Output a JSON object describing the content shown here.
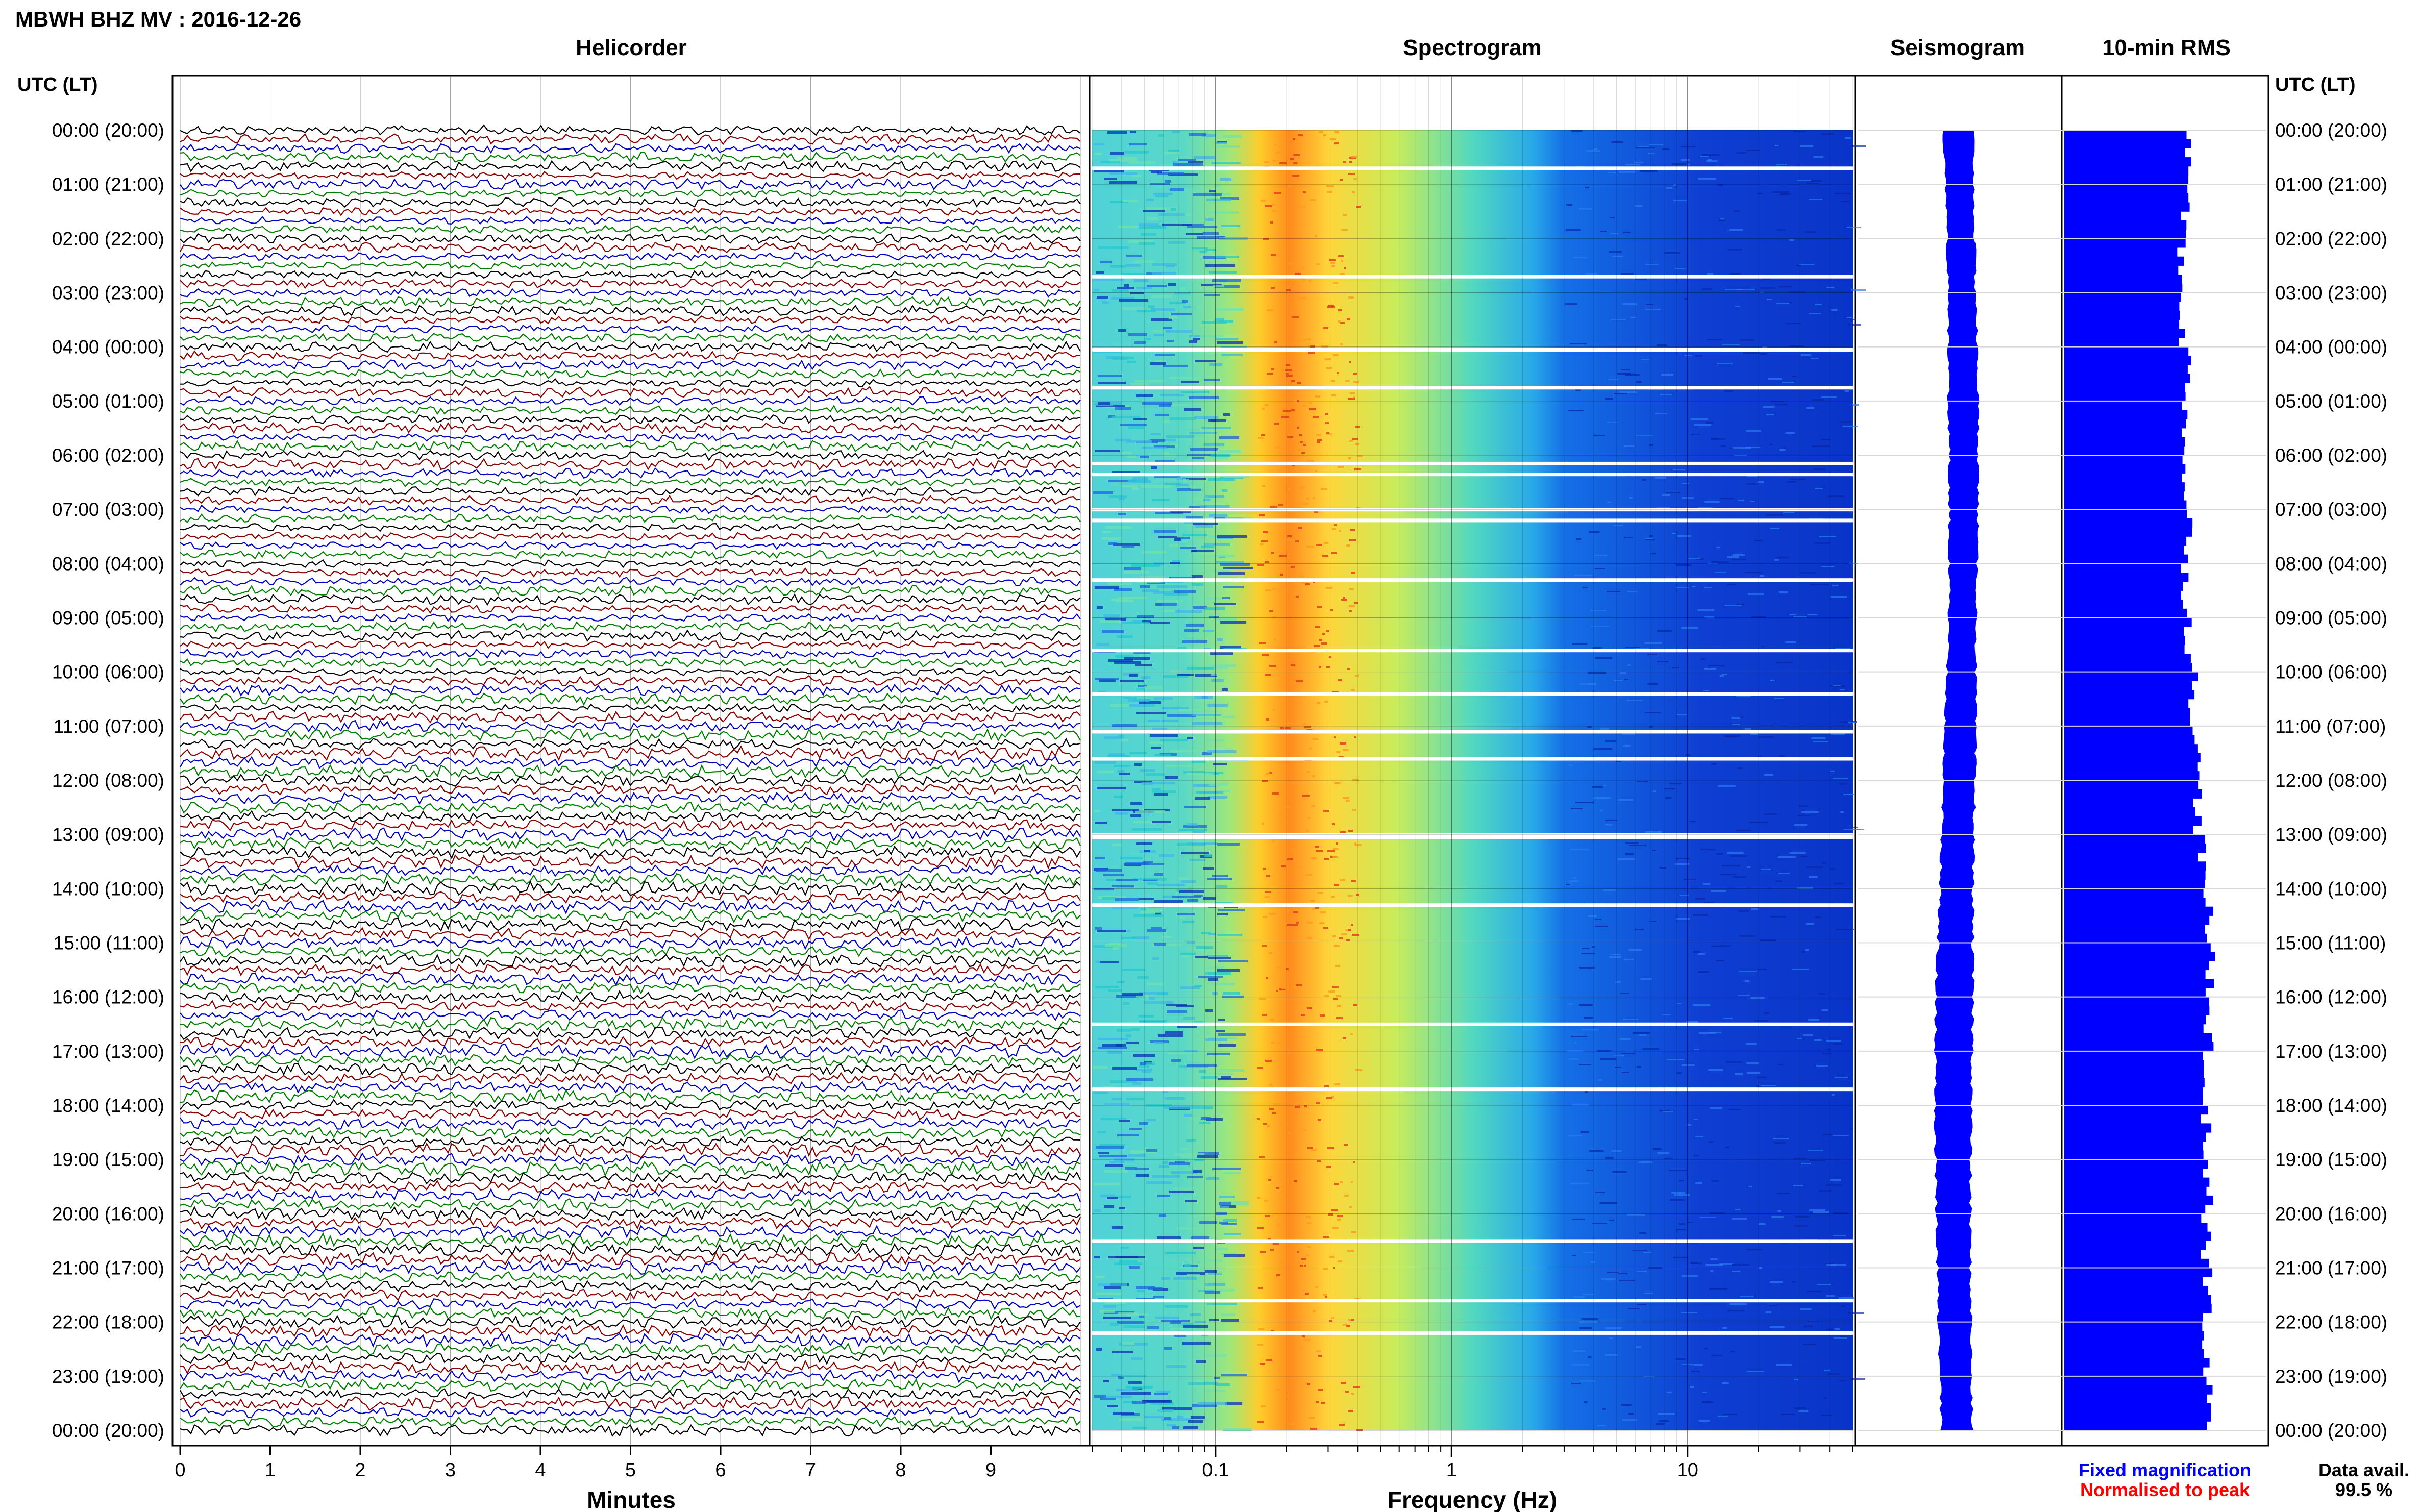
{
  "header": {
    "title": "MBWH BHZ MV : 2016-12-26",
    "time_axis_label_left": "UTC (LT)",
    "time_axis_label_right": "UTC (LT)"
  },
  "panels": {
    "helicorder_title": "Helicorder",
    "spectrogram_title": "Spectrogram",
    "seismogram_title": "Seismogram",
    "rms_title": "10-min RMS"
  },
  "footer": {
    "legend_fixed": "Fixed magnification",
    "legend_normalised": "Normalised to peak",
    "availability_label": "Data avail.",
    "availability_value": "99.5 %"
  },
  "colors": {
    "trace_cycle": [
      "#000000",
      "#8b0000",
      "#0000c8",
      "#008000"
    ],
    "fixed_magnification": "#0000ff",
    "normalised_to_peak": "#ff0000",
    "rms_bar": "#0000ff"
  },
  "chart_data": [
    {
      "type": "line",
      "title": "Helicorder",
      "xlabel": "Minutes",
      "x_ticks": [
        "0",
        "1",
        "2",
        "3",
        "4",
        "5",
        "6",
        "7",
        "8",
        "9"
      ],
      "xlim": [
        0,
        10
      ],
      "y_labels": [
        "00:00 (20:00)",
        "01:00 (21:00)",
        "02:00 (22:00)",
        "03:00 (23:00)",
        "04:00 (00:00)",
        "05:00 (01:00)",
        "06:00 (02:00)",
        "07:00 (03:00)",
        "08:00 (04:00)",
        "09:00 (05:00)",
        "10:00 (06:00)",
        "11:00 (07:00)",
        "12:00 (08:00)",
        "13:00 (09:00)",
        "14:00 (10:00)",
        "15:00 (11:00)",
        "16:00 (12:00)",
        "17:00 (13:00)",
        "18:00 (14:00)",
        "19:00 (15:00)",
        "20:00 (16:00)",
        "21:00 (17:00)",
        "22:00 (18:00)",
        "23:00 (19:00)",
        "00:00 (20:00)"
      ],
      "lines_per_hour": 6,
      "line_minutes": 10
    },
    {
      "type": "heatmap",
      "title": "Spectrogram",
      "xlabel": "Frequency (Hz)",
      "x_scale": "log",
      "xlim": [
        0.03,
        50
      ],
      "x_ticks": [
        "0.1",
        "1",
        "10"
      ],
      "x_tick_values": [
        0.1,
        1,
        10
      ],
      "peak_band_hz": [
        0.15,
        0.4
      ],
      "gap_rows_hours": [
        0.7,
        2.7,
        4.05,
        4.75,
        6.15,
        6.35,
        7.0,
        7.2,
        8.3,
        9.6,
        10.4,
        11.1,
        11.6,
        13.0,
        13.05,
        14.3,
        16.5,
        17.7,
        20.5,
        21.6,
        22.2
      ]
    },
    {
      "type": "line",
      "title": "Seismogram",
      "series": [
        {
          "name": "Fixed magnification",
          "values": [
            0.33,
            0.31,
            0.3,
            0.3,
            0.31,
            0.32,
            0.32,
            0.31,
            0.3,
            0.3,
            0.31,
            0.33,
            0.34,
            0.35,
            0.36,
            0.38,
            0.4,
            0.41,
            0.4,
            0.38,
            0.37,
            0.36,
            0.36,
            0.34,
            0.33
          ]
        }
      ]
    },
    {
      "type": "bar",
      "title": "10-min RMS",
      "values": [
        0.8,
        0.78,
        0.75,
        0.76,
        0.79,
        0.78,
        0.77,
        0.8,
        0.78,
        0.8,
        0.83,
        0.85,
        0.86,
        0.88,
        0.92,
        0.94,
        0.93,
        0.9,
        0.91,
        0.92,
        0.91,
        0.92,
        0.9,
        0.92,
        0.91
      ]
    }
  ]
}
